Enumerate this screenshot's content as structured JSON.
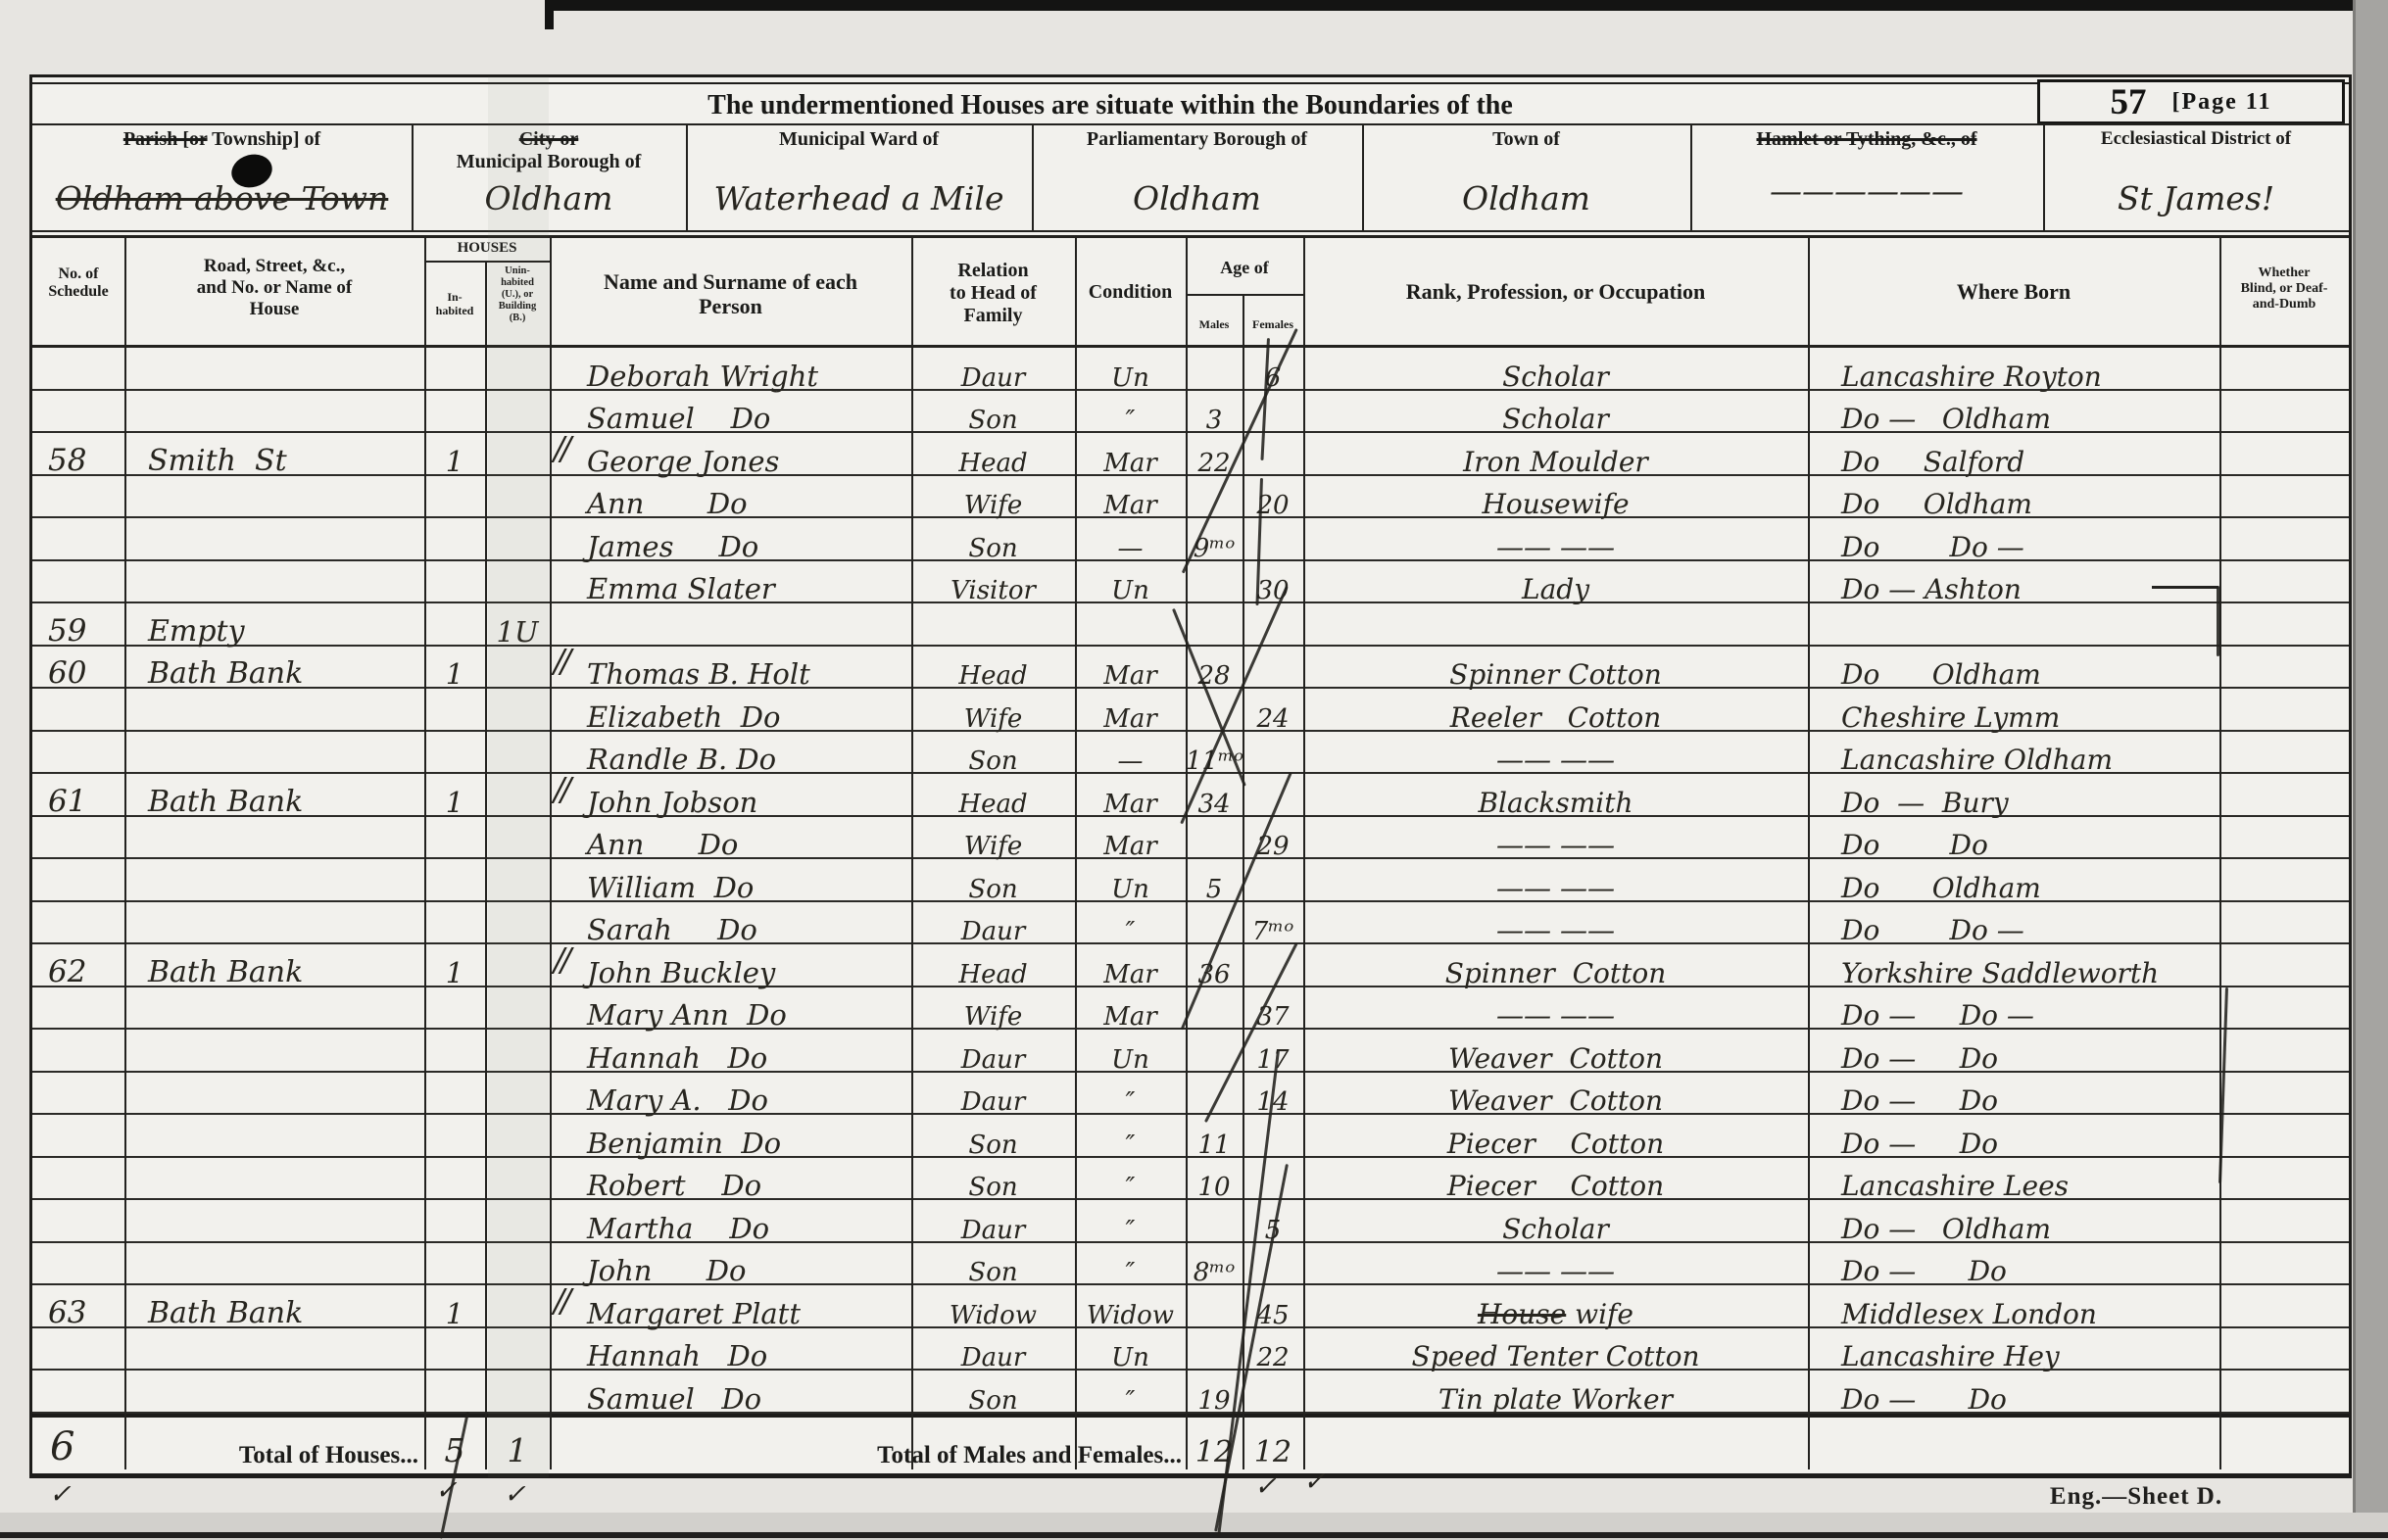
{
  "header": {
    "title": "The undermentioned Houses are situate within the Boundaries of the",
    "folio": "57",
    "page_label": "[Page  11",
    "locations": {
      "parish_label_struck": "Parish [or",
      "parish_label_rest": " Township] of",
      "borough_label_struck": "City or",
      "borough_label_rest": "Municipal Borough of",
      "ward_label": "Municipal Ward of",
      "parliamentary_label": "Parliamentary Borough of",
      "town_label": "Town of",
      "hamlet_label_struck": "Hamlet or Tything, &c., of",
      "ecclesiastical_label": "Ecclesiastical District of",
      "parish_value": "Oldham above Town",
      "borough_value": "Oldham",
      "ward_value": "Waterhead a Mile",
      "parliamentary_value": "Oldham",
      "town_value": "Oldham",
      "hamlet_value": "——————",
      "ecclesiastical_value": "St James!"
    }
  },
  "columns": {
    "schedule": "No. of\nSchedule",
    "road": "Road, Street, &c.,\nand No. or Name of\nHouse",
    "houses": "HOUSES",
    "inhabited": "In-\nhabited",
    "uninhabited": "Unin-\nhabited\n(U.), or\nBuilding\n(B.)",
    "name": "Name and Surname of each\nPerson",
    "relation": "Relation\nto Head of\nFamily",
    "condition": "Condition",
    "age": "Age of",
    "males": "Males",
    "females": "Females",
    "rank": "Rank, Profession, or Occupation",
    "born": "Where  Born",
    "blind": "Whether\nBlind, or Deaf-\nand-Dumb"
  },
  "rows": [
    {
      "name": "Deborah Wright",
      "relation": "Daur",
      "condition": "Un",
      "age_f": "6",
      "occ": "Scholar",
      "born": "Lancashire Royton"
    },
    {
      "name": "Samuel    Do",
      "relation": "Son",
      "condition": "″",
      "age_m": "3",
      "occ": "Scholar",
      "born": "Do —   Oldham"
    },
    {
      "schedule": "58",
      "road": "Smith  St",
      "inhabited": "1",
      "mark": "//",
      "name": "George Jones",
      "relation": "Head",
      "condition": "Mar",
      "age_m": "22",
      "occ": "Iron Moulder",
      "born": "Do     Salford"
    },
    {
      "name": "Ann       Do",
      "relation": "Wife",
      "condition": "Mar",
      "age_f": "20",
      "occ": "Housewife",
      "born": "Do     Oldham"
    },
    {
      "name": "James     Do",
      "relation": "Son",
      "condition": "—",
      "age_m": "9ᵐᵒ",
      "occ": "—— ——",
      "born": "Do        Do —"
    },
    {
      "name": "Emma Slater",
      "relation": "Visitor",
      "condition": "Un",
      "age_f": "30",
      "occ": "Lady",
      "born": "Do — Ashton"
    },
    {
      "schedule": "59",
      "road": "Empty",
      "uninhabited": "1U"
    },
    {
      "schedule": "60",
      "road": "Bath Bank",
      "inhabited": "1",
      "mark": "//",
      "name": "Thomas B. Holt",
      "relation": "Head",
      "condition": "Mar",
      "age_m": "28",
      "occ": "Spinner Cotton",
      "born": "Do      Oldham"
    },
    {
      "name": "Elizabeth  Do",
      "relation": "Wife",
      "condition": "Mar",
      "age_f": "24",
      "occ": "Reeler   Cotton",
      "born": "Cheshire Lymm"
    },
    {
      "name": "Randle B. Do",
      "relation": "Son",
      "condition": "—",
      "age_m": "11ᵐᵒ",
      "occ": "—— ——",
      "born": "Lancashire Oldham"
    },
    {
      "schedule": "61",
      "road": "Bath Bank",
      "inhabited": "1",
      "mark": "//",
      "name": "John Jobson",
      "relation": "Head",
      "condition": "Mar",
      "age_m": "34",
      "occ": "Blacksmith",
      "born": "Do  —  Bury"
    },
    {
      "name": "Ann      Do",
      "relation": "Wife",
      "condition": "Mar",
      "age_f": "29",
      "occ": "—— ——",
      "born": "Do        Do"
    },
    {
      "name": "William  Do",
      "relation": "Son",
      "condition": "Un",
      "age_m": "5",
      "occ": "—— ——",
      "born": "Do      Oldham"
    },
    {
      "name": "Sarah     Do",
      "relation": "Daur",
      "condition": "″",
      "age_f": "7ᵐᵒ",
      "occ": "—— ——",
      "born": "Do        Do —"
    },
    {
      "schedule": "62",
      "road": "Bath Bank",
      "inhabited": "1",
      "mark": "//",
      "name": "John Buckley",
      "relation": "Head",
      "condition": "Mar",
      "age_m": "36",
      "occ": "Spinner  Cotton",
      "born": "Yorkshire Saddleworth"
    },
    {
      "name": "Mary Ann  Do",
      "relation": "Wife",
      "condition": "Mar",
      "age_f": "37",
      "occ": "—— ——",
      "born": "Do —     Do —"
    },
    {
      "name": "Hannah   Do",
      "relation": "Daur",
      "condition": "Un",
      "age_f": "17",
      "occ": "Weaver  Cotton",
      "born": "Do —     Do"
    },
    {
      "name": "Mary A.   Do",
      "relation": "Daur",
      "condition": "″",
      "age_f": "14",
      "occ": "Weaver  Cotton",
      "born": "Do —     Do"
    },
    {
      "name": "Benjamin  Do",
      "relation": "Son",
      "condition": "″",
      "age_m": "11",
      "occ": "Piecer    Cotton",
      "born": "Do —     Do"
    },
    {
      "name": "Robert    Do",
      "relation": "Son",
      "condition": "″",
      "age_m": "10",
      "occ": "Piecer    Cotton",
      "born": "Lancashire Lees"
    },
    {
      "name": "Martha    Do",
      "relation": "Daur",
      "condition": "″",
      "age_f": "5",
      "occ": "Scholar",
      "born": "Do —   Oldham"
    },
    {
      "name": "John      Do",
      "relation": "Son",
      "condition": "″",
      "age_m": "8ᵐᵒ",
      "occ": "—— ——",
      "born": "Do —      Do"
    },
    {
      "schedule": "63",
      "road": "Bath Bank",
      "inhabited": "1",
      "mark": "//",
      "name": "Margaret Platt",
      "relation": "Widow",
      "condition": "Widow",
      "age_f": "45",
      "occ_struck": "House",
      "occ": " wife",
      "born": "Middlesex London"
    },
    {
      "name": "Hannah   Do",
      "relation": "Daur",
      "condition": "Un",
      "age_f": "22",
      "occ": "Speed Tenter Cotton",
      "born": "Lancashire Hey"
    },
    {
      "name": "Samuel   Do",
      "relation": "Son",
      "condition": "″",
      "age_m": "19",
      "occ": "Tin plate Worker",
      "born": "Do —      Do"
    }
  ],
  "totals": {
    "schedule": "6",
    "houses_label": "Total of Houses...",
    "inhabited": "5",
    "uninhabited": "1",
    "persons_label": "Total of Males and Females...",
    "males": "12",
    "females": "12"
  },
  "footer": {
    "sheet": "Eng.—Sheet D."
  },
  "marks": {
    "check": "✓"
  }
}
